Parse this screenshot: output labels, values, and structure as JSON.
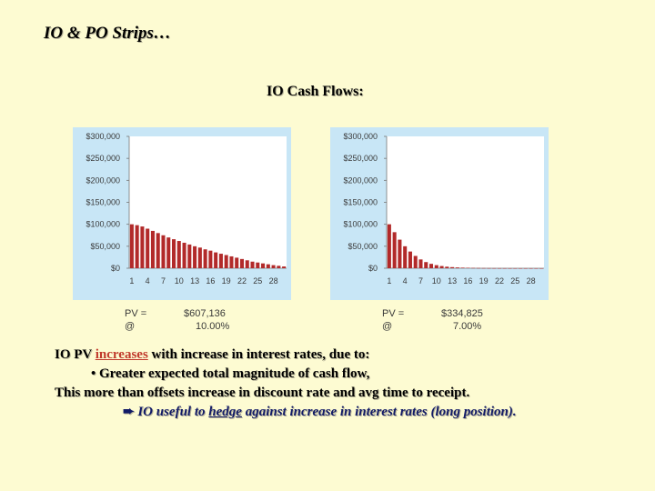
{
  "slide": {
    "title": "IO & PO Strips…",
    "chart_heading": "IO Cash Flows:"
  },
  "colors": {
    "background": "#fdfbd2",
    "panel": "#c8e6f6",
    "plot_area": "#ffffff",
    "bar": "#b22a2a",
    "accent_text": "#c0392b",
    "navy_text": "#111a66"
  },
  "chart_data": [
    {
      "type": "bar",
      "title": "",
      "xlabel": "",
      "ylabel": "",
      "ylim": [
        0,
        300000
      ],
      "y_ticks": [
        "$300,000",
        "$250,000",
        "$200,000",
        "$150,000",
        "$100,000",
        "$50,000",
        "$0"
      ],
      "x_ticks": [
        "1",
        "4",
        "7",
        "10",
        "13",
        "16",
        "19",
        "22",
        "25",
        "28"
      ],
      "categories": [
        1,
        2,
        3,
        4,
        5,
        6,
        7,
        8,
        9,
        10,
        11,
        12,
        13,
        14,
        15,
        16,
        17,
        18,
        19,
        20,
        21,
        22,
        23,
        24,
        25,
        26,
        27,
        28,
        29,
        30
      ],
      "values": [
        100000,
        98000,
        95000,
        90000,
        85000,
        80000,
        75000,
        70000,
        66000,
        62000,
        58000,
        54000,
        50000,
        47000,
        43000,
        40000,
        36000,
        33000,
        30000,
        27000,
        24000,
        21000,
        18000,
        15000,
        13000,
        11000,
        9000,
        7000,
        5500,
        4000
      ],
      "grid": false,
      "pv_label": "PV =",
      "pv_value": "$607,136",
      "rate_label": "@",
      "rate_value": "10.00%"
    },
    {
      "type": "bar",
      "title": "",
      "xlabel": "",
      "ylabel": "",
      "ylim": [
        0,
        300000
      ],
      "y_ticks": [
        "$300,000",
        "$250,000",
        "$200,000",
        "$150,000",
        "$100,000",
        "$50,000",
        "$0"
      ],
      "x_ticks": [
        "1",
        "4",
        "7",
        "10",
        "13",
        "16",
        "19",
        "22",
        "25",
        "28"
      ],
      "categories": [
        1,
        2,
        3,
        4,
        5,
        6,
        7,
        8,
        9,
        10,
        11,
        12,
        13,
        14,
        15,
        16,
        17,
        18,
        19,
        20,
        21,
        22,
        23,
        24,
        25,
        26,
        27,
        28,
        29,
        30
      ],
      "values": [
        100000,
        82000,
        65000,
        50000,
        38000,
        28000,
        20000,
        14000,
        10000,
        7000,
        5000,
        3500,
        2500,
        1800,
        1300,
        1000,
        700,
        500,
        350,
        250,
        180,
        130,
        90,
        60,
        40,
        30,
        20,
        15,
        10,
        5
      ],
      "grid": false,
      "pv_label": "PV =",
      "pv_value": "$334,825",
      "rate_label": "@",
      "rate_value": "7.00%"
    }
  ],
  "text": {
    "line1_pre": "IO PV ",
    "line1_hl": "increases",
    "line1_post": " with increase in interest rates, due to:",
    "line2": "• Greater expected total magnitude of cash flow,",
    "line3": "This more than offsets increase in discount rate and avg time to receipt.",
    "line4_arrow": "➨",
    "line4_pre": " IO useful to ",
    "line4_hl": "hedge",
    "line4_post": " against increase in interest rates (long position)."
  }
}
